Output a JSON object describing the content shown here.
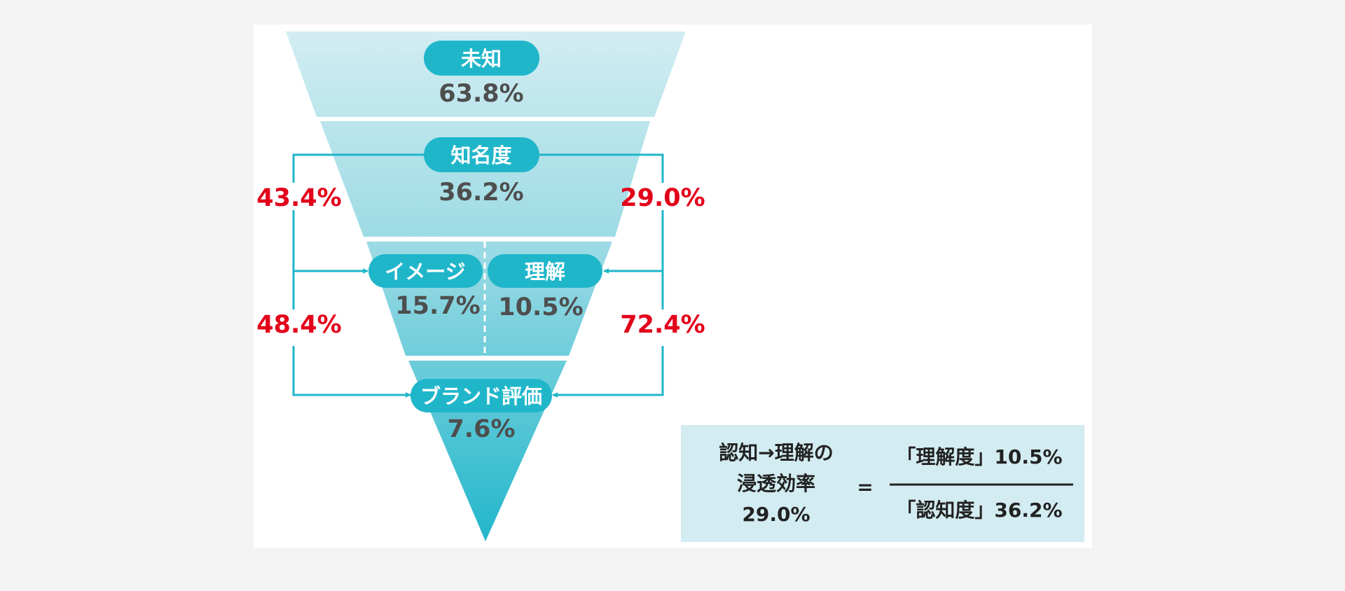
{
  "colors": {
    "accent": "#20b6ca",
    "rate": "#e2001a",
    "value": "#4e4e4e",
    "formula_bg": "#d3ecf1"
  },
  "stages": {
    "unaware": {
      "label": "未知",
      "value": "63.8%"
    },
    "awareness": {
      "label": "知名度",
      "value": "36.2%"
    },
    "image": {
      "label": "イメージ",
      "value": "15.7%"
    },
    "understanding": {
      "label": "理解",
      "value": "10.5%"
    },
    "brand_evaluation": {
      "label": "ブランド評価",
      "value": "7.6%"
    }
  },
  "conversion_rates": {
    "awareness_to_image": "43.4%",
    "image_to_brand": "48.4%",
    "awareness_to_understanding": "29.0%",
    "understanding_to_brand": "72.4%"
  },
  "formula": {
    "left_line1": "認知→理解の",
    "left_line2": "浸透効率",
    "left_line3": "29.0%",
    "equals": "=",
    "numerator": "「理解度」10.5%",
    "denominator": "「認知度」36.2%"
  }
}
